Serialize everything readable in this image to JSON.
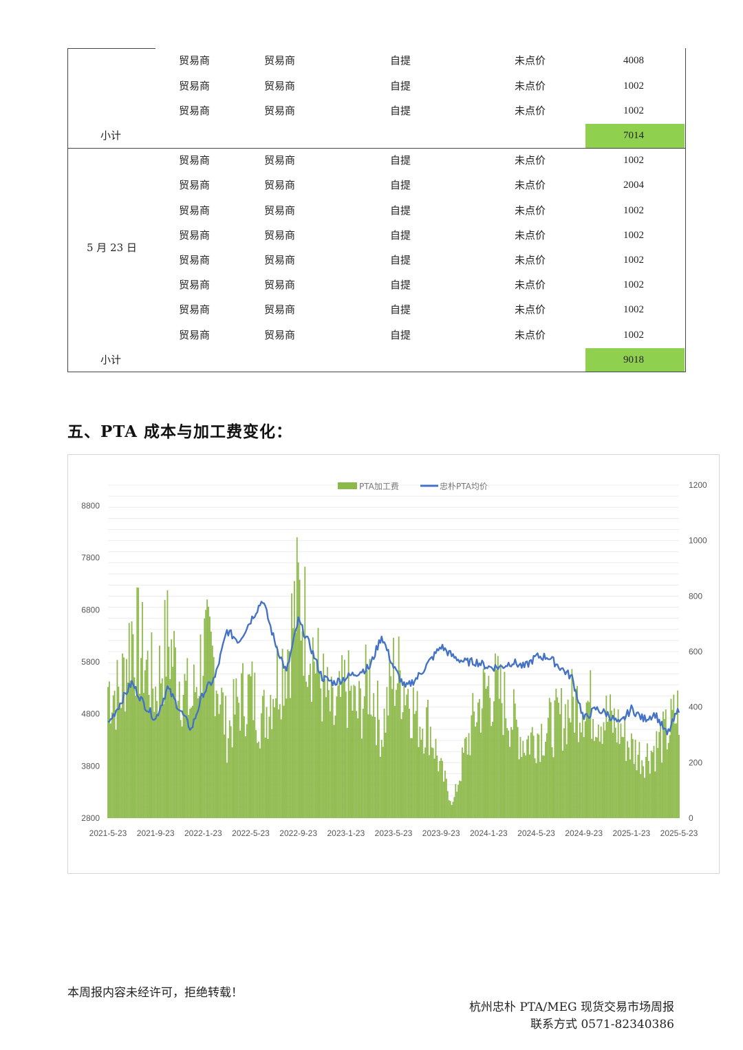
{
  "table": {
    "group1": {
      "rows": [
        {
          "buyer": "贸易商",
          "seller": "贸易商",
          "delivery": "自提",
          "pricing": "未点价",
          "qty": "4008"
        },
        {
          "buyer": "贸易商",
          "seller": "贸易商",
          "delivery": "自提",
          "pricing": "未点价",
          "qty": "1002"
        },
        {
          "buyer": "贸易商",
          "seller": "贸易商",
          "delivery": "自提",
          "pricing": "未点价",
          "qty": "1002"
        }
      ],
      "subtotal_label": "小计",
      "subtotal": "7014"
    },
    "group2": {
      "date": "5 月 23 日",
      "rows": [
        {
          "buyer": "贸易商",
          "seller": "贸易商",
          "delivery": "自提",
          "pricing": "未点价",
          "qty": "1002"
        },
        {
          "buyer": "贸易商",
          "seller": "贸易商",
          "delivery": "自提",
          "pricing": "未点价",
          "qty": "2004"
        },
        {
          "buyer": "贸易商",
          "seller": "贸易商",
          "delivery": "自提",
          "pricing": "未点价",
          "qty": "1002"
        },
        {
          "buyer": "贸易商",
          "seller": "贸易商",
          "delivery": "自提",
          "pricing": "未点价",
          "qty": "1002"
        },
        {
          "buyer": "贸易商",
          "seller": "贸易商",
          "delivery": "自提",
          "pricing": "未点价",
          "qty": "1002"
        },
        {
          "buyer": "贸易商",
          "seller": "贸易商",
          "delivery": "自提",
          "pricing": "未点价",
          "qty": "1002"
        },
        {
          "buyer": "贸易商",
          "seller": "贸易商",
          "delivery": "自提",
          "pricing": "未点价",
          "qty": "1002"
        },
        {
          "buyer": "贸易商",
          "seller": "贸易商",
          "delivery": "自提",
          "pricing": "未点价",
          "qty": "1002"
        }
      ],
      "subtotal_label": "小计",
      "subtotal": "9018"
    },
    "highlight_color": "#8fd14f"
  },
  "section": {
    "title": "五、PTA 成本与加工费变化："
  },
  "chart_data": {
    "type": "bar+line",
    "title": "",
    "legend": [
      "PTA加工费",
      "忠朴PTA均价"
    ],
    "legend_position": "top-center",
    "x_tick_labels": [
      "2021-5-23",
      "2021-9-23",
      "2022-1-23",
      "2022-5-23",
      "2022-9-23",
      "2023-1-23",
      "2023-5-23",
      "2023-9-23",
      "2024-1-23",
      "2024-5-23",
      "2024-9-23",
      "2025-1-23",
      "2025-5-23"
    ],
    "y_left": {
      "ticks": [
        "2800",
        "3800",
        "4800",
        "5800",
        "6800",
        "7800",
        "8800"
      ],
      "range": [
        2800,
        8800
      ]
    },
    "y_right": {
      "ticks": [
        "0",
        "200",
        "400",
        "600",
        "800",
        "1000",
        "1200"
      ],
      "range": [
        0,
        1200
      ]
    },
    "grid": true,
    "series": [
      {
        "name": "PTA加工费",
        "kind": "bar",
        "axis": "right",
        "color": "#8db94a",
        "x": [
          "2021-5",
          "2021-6",
          "2021-7",
          "2021-8",
          "2021-9",
          "2021-10",
          "2021-11",
          "2021-12",
          "2022-1",
          "2022-2",
          "2022-3",
          "2022-4",
          "2022-5",
          "2022-6",
          "2022-7",
          "2022-8",
          "2022-9",
          "2022-10",
          "2022-11",
          "2022-12",
          "2023-1",
          "2023-2",
          "2023-3",
          "2023-4",
          "2023-5",
          "2023-6",
          "2023-7",
          "2023-8",
          "2023-9",
          "2023-10",
          "2023-11",
          "2023-12",
          "2024-1",
          "2024-2",
          "2024-3",
          "2024-4",
          "2024-5",
          "2024-6",
          "2024-7",
          "2024-8",
          "2024-9",
          "2024-10",
          "2024-11",
          "2024-12",
          "2025-1",
          "2025-2",
          "2025-3",
          "2025-4",
          "2025-5"
        ],
        "values": [
          560,
          520,
          800,
          680,
          540,
          760,
          600,
          470,
          720,
          650,
          360,
          500,
          540,
          420,
          580,
          700,
          940,
          760,
          560,
          420,
          560,
          440,
          600,
          360,
          620,
          580,
          420,
          400,
          200,
          60,
          280,
          460,
          560,
          520,
          420,
          320,
          360,
          380,
          420,
          480,
          500,
          460,
          420,
          380,
          300,
          260,
          300,
          360,
          460
        ]
      },
      {
        "name": "忠朴PTA均价",
        "kind": "line",
        "axis": "left",
        "color": "#4472c4",
        "x": [
          "2021-5",
          "2021-6",
          "2021-7",
          "2021-8",
          "2021-9",
          "2021-10",
          "2021-11",
          "2021-12",
          "2022-1",
          "2022-2",
          "2022-3",
          "2022-4",
          "2022-5",
          "2022-6",
          "2022-7",
          "2022-8",
          "2022-9",
          "2022-10",
          "2022-11",
          "2022-12",
          "2023-1",
          "2023-2",
          "2023-3",
          "2023-4",
          "2023-5",
          "2023-6",
          "2023-7",
          "2023-8",
          "2023-9",
          "2023-10",
          "2023-11",
          "2023-12",
          "2024-1",
          "2024-2",
          "2024-3",
          "2024-4",
          "2024-5",
          "2024-6",
          "2024-7",
          "2024-8",
          "2024-9",
          "2024-10",
          "2024-11",
          "2024-12",
          "2025-1",
          "2025-2",
          "2025-3",
          "2025-4",
          "2025-5"
        ],
        "values": [
          4600,
          5000,
          5400,
          5000,
          4700,
          5300,
          4900,
          4500,
          5200,
          5500,
          6400,
          6200,
          6600,
          7000,
          6200,
          5600,
          6600,
          6100,
          5500,
          5400,
          5500,
          5600,
          5700,
          6300,
          5700,
          5300,
          5500,
          5800,
          6100,
          5900,
          5800,
          5800,
          5700,
          5700,
          5800,
          5700,
          5900,
          5900,
          5700,
          5500,
          4700,
          4900,
          4800,
          4600,
          4900,
          4700,
          4800,
          4400,
          4900
        ]
      }
    ]
  },
  "footer": {
    "notice": "本周报内容未经许可，拒绝转载！",
    "report_name": "杭州忠朴 PTA/MEG 现货交易市场周报",
    "contact": "联系方式 0571-82340386"
  }
}
